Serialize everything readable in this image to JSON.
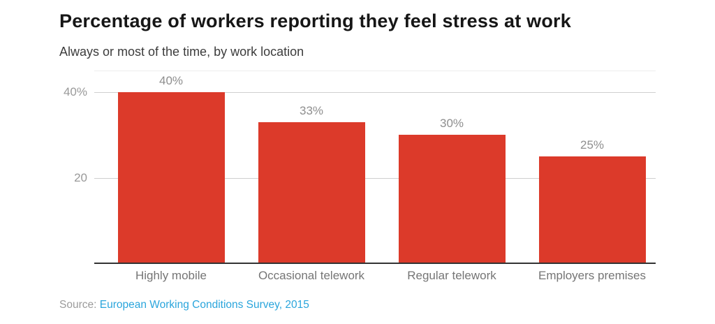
{
  "chart_data": {
    "type": "bar",
    "title": "Percentage of workers reporting they feel stress at work",
    "subtitle": "Always or most of the time, by work location",
    "categories": [
      "Highly mobile",
      "Occasional telework",
      "Regular telework",
      "Employers premises"
    ],
    "values": [
      40,
      33,
      30,
      25
    ],
    "value_labels": [
      "40%",
      "33%",
      "30%",
      "25%"
    ],
    "xlabel": "",
    "ylabel": "",
    "ylim": [
      0,
      45
    ],
    "yticks": [
      {
        "value": 20,
        "label": "20"
      },
      {
        "value": 40,
        "label": "40%"
      }
    ],
    "grid": true,
    "legend": "none",
    "bar_color": "#dc3a2a"
  },
  "source": {
    "prefix": "Source:",
    "link_text": "European Working Conditions Survey, 2015"
  },
  "colors": {
    "bar": "#dc3a2a",
    "title": "#161616",
    "subtitle": "#3c3c3c",
    "tick_label": "#999999",
    "value_label": "#8e8e8e",
    "category_label": "#757575",
    "gridline": "#cfcfcf",
    "plot_top_gridline": "#ededed",
    "axis_line": "#333333",
    "source_text": "#9b9b9b",
    "source_link": "#2aa5dc"
  }
}
